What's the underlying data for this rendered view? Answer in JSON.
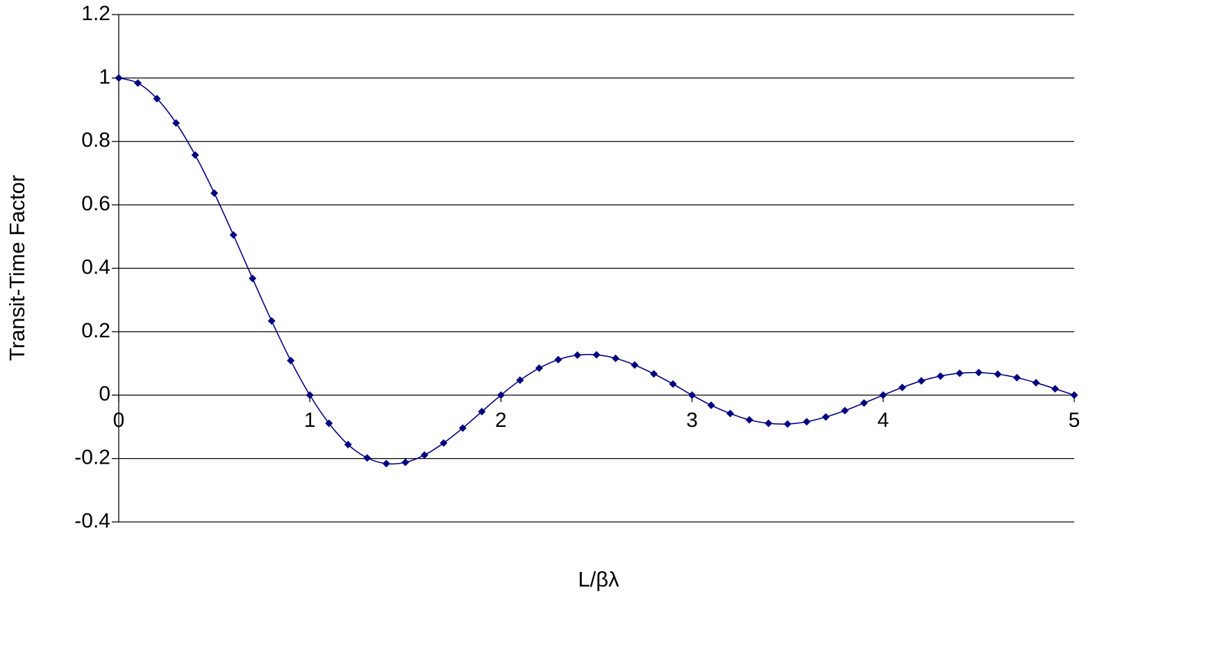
{
  "chart_data": {
    "type": "line",
    "title": "",
    "xlabel": "L/βλ",
    "ylabel": "Transit-Time Factor",
    "xlim": [
      0,
      5
    ],
    "ylim": [
      -0.4,
      1.2
    ],
    "x_ticks": [
      0,
      1,
      2,
      3,
      4,
      5
    ],
    "x_tick_labels": [
      "0",
      "1",
      "2",
      "3",
      "4",
      "5"
    ],
    "y_ticks": [
      1.2,
      1,
      0.8,
      0.6,
      0.4,
      0.2,
      0,
      -0.2,
      -0.4
    ],
    "y_tick_labels": [
      "1.2",
      "1",
      "0.8",
      "0.6",
      "0.4",
      "0.2",
      "0",
      "-0.2",
      "-0.4"
    ],
    "grid": "horizontal",
    "legend": "none",
    "colors": {
      "series": "#000080",
      "grid": "#000000",
      "background": "#ffffff"
    },
    "marker": "diamond",
    "series": [
      {
        "x": [
          0,
          0.1,
          0.2,
          0.3,
          0.4,
          0.5,
          0.6,
          0.7,
          0.8,
          0.9,
          1.0,
          1.1,
          1.2,
          1.3,
          1.4,
          1.5,
          1.6,
          1.7,
          1.8,
          1.9,
          2.0,
          2.1,
          2.2,
          2.3,
          2.4,
          2.5,
          2.6,
          2.7,
          2.8,
          2.9,
          3.0,
          3.1,
          3.2,
          3.3,
          3.4,
          3.5,
          3.6,
          3.7,
          3.8,
          3.9,
          4.0,
          4.1,
          4.2,
          4.3,
          4.4,
          4.5,
          4.6,
          4.7,
          4.8,
          4.9,
          5.0
        ],
        "values": [
          1.0,
          0.984,
          0.935,
          0.858,
          0.757,
          0.637,
          0.505,
          0.368,
          0.234,
          0.109,
          0.0,
          -0.089,
          -0.156,
          -0.198,
          -0.216,
          -0.212,
          -0.189,
          -0.151,
          -0.104,
          -0.052,
          0.0,
          0.047,
          0.085,
          0.112,
          0.126,
          0.127,
          0.116,
          0.095,
          0.067,
          0.035,
          0.0,
          -0.032,
          -0.058,
          -0.078,
          -0.089,
          -0.091,
          -0.084,
          -0.069,
          -0.049,
          -0.025,
          0.0,
          0.024,
          0.045,
          0.06,
          0.069,
          0.071,
          0.066,
          0.055,
          0.039,
          0.02,
          0.0
        ]
      }
    ]
  }
}
